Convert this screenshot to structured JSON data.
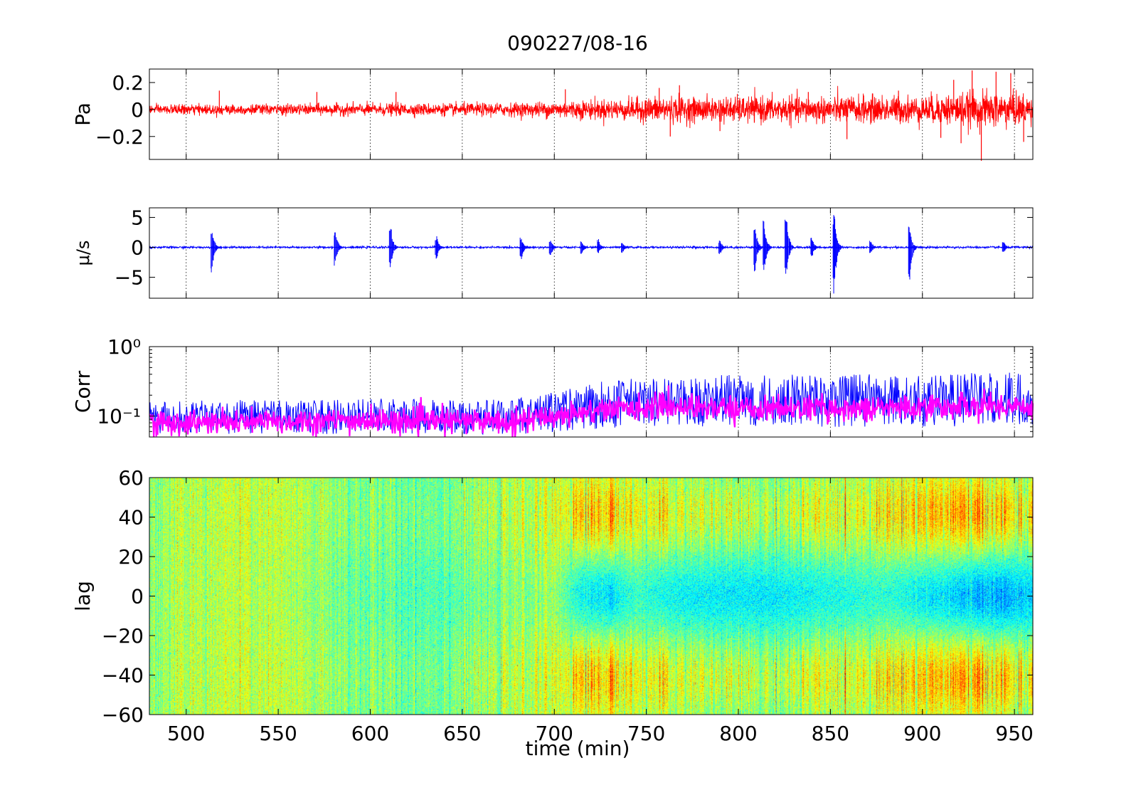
{
  "title": "090227/08-16",
  "xlabel": "time (min)",
  "colors": {
    "pressure": "#ff0000",
    "velocity": "#0000ff",
    "corr_a": "#0000ff",
    "corr_b": "#ff00ff"
  },
  "chart_data": [
    {
      "type": "line",
      "ylabel": "Pa",
      "xlim": [
        480,
        960
      ],
      "ylim": [
        -0.37,
        0.3
      ],
      "xticks": [
        500,
        550,
        600,
        650,
        700,
        750,
        800,
        850,
        900,
        950
      ],
      "yticks": [
        0.2,
        0,
        -0.2
      ],
      "ytick_labels": [
        "0.2",
        "0",
        "−0.2"
      ],
      "grid": "x-dotted",
      "series": [
        {
          "color": "#ff0000",
          "x": [
            480,
            520,
            560,
            600,
            640,
            680,
            700,
            720,
            740,
            760,
            780,
            800,
            820,
            840,
            860,
            880,
            900,
            920,
            940,
            960
          ],
          "amplitude": [
            0.03,
            0.035,
            0.035,
            0.04,
            0.04,
            0.045,
            0.055,
            0.065,
            0.07,
            0.09,
            0.08,
            0.085,
            0.085,
            0.085,
            0.09,
            0.09,
            0.09,
            0.11,
            0.12,
            0.1
          ],
          "spikes": [
            [
              518,
              0.14
            ],
            [
              571,
              0.13
            ],
            [
              614,
              0.13
            ],
            [
              706,
              0.15
            ],
            [
              757,
              0.16
            ],
            [
              763,
              -0.2
            ],
            [
              768,
              0.18
            ],
            [
              790,
              -0.16
            ],
            [
              838,
              0.13
            ],
            [
              859,
              -0.22
            ],
            [
              887,
              0.14
            ],
            [
              910,
              -0.21
            ],
            [
              917,
              0.22
            ],
            [
              921,
              -0.25
            ],
            [
              927,
              0.29
            ],
            [
              932,
              -0.38
            ],
            [
              940,
              0.28
            ],
            [
              948,
              0.27
            ],
            [
              955,
              -0.24
            ]
          ]
        }
      ]
    },
    {
      "type": "line",
      "ylabel": "μ/s",
      "xlim": [
        480,
        960
      ],
      "ylim": [
        -8.5,
        6.6
      ],
      "xticks": [
        500,
        550,
        600,
        650,
        700,
        750,
        800,
        850,
        900,
        950
      ],
      "yticks": [
        5,
        0,
        -5
      ],
      "ytick_labels": [
        "5",
        "0",
        "−5"
      ],
      "grid": "x-dotted",
      "series": [
        {
          "color": "#0000ff",
          "baseline_noise": 0.2,
          "bursts": [
            [
              514,
              3.3,
              -4.3
            ],
            [
              581,
              3.0,
              -3.2
            ],
            [
              611,
              4.0,
              -3.4
            ],
            [
              636,
              1.9,
              -2.0
            ],
            [
              682,
              1.7,
              -2.2
            ],
            [
              698,
              1.4,
              -1.5
            ],
            [
              715,
              1.0,
              -1.3
            ],
            [
              724,
              1.4,
              -1.2
            ],
            [
              737,
              1.0,
              -1.0
            ],
            [
              790,
              1.2,
              -1.3
            ],
            [
              809,
              3.8,
              -4.2
            ],
            [
              814,
              4.6,
              -4.4
            ],
            [
              826,
              6.4,
              -5.5
            ],
            [
              840,
              1.8,
              -1.8
            ],
            [
              852,
              6.3,
              -8.4
            ],
            [
              872,
              1.2,
              -1.0
            ],
            [
              893,
              3.5,
              -5.8
            ],
            [
              944,
              1.0,
              -1.1
            ]
          ]
        }
      ]
    },
    {
      "type": "line",
      "ylabel": "Corr",
      "yscale": "log",
      "xlim": [
        480,
        960
      ],
      "ylim": [
        0.05,
        1.0
      ],
      "xticks": [
        500,
        550,
        600,
        650,
        700,
        750,
        800,
        850,
        900,
        950
      ],
      "ytick_labels": [
        "10⁰",
        "10⁻¹"
      ],
      "grid": "x-dotted",
      "series": [
        {
          "color": "#0000ff",
          "x": [
            480,
            520,
            560,
            600,
            640,
            680,
            700,
            720,
            740,
            760,
            800,
            840,
            880,
            920,
            960
          ],
          "y_low": [
            0.055,
            0.055,
            0.055,
            0.055,
            0.055,
            0.055,
            0.058,
            0.065,
            0.07,
            0.07,
            0.07,
            0.07,
            0.07,
            0.07,
            0.075
          ],
          "y_high": [
            0.16,
            0.17,
            0.17,
            0.18,
            0.17,
            0.18,
            0.22,
            0.3,
            0.35,
            0.35,
            0.4,
            0.4,
            0.4,
            0.42,
            0.45
          ]
        },
        {
          "color": "#ff00ff",
          "x": [
            480,
            520,
            560,
            600,
            640,
            680,
            700,
            720,
            740,
            760,
            800,
            840,
            880,
            920,
            960
          ],
          "y_center": [
            0.08,
            0.08,
            0.085,
            0.085,
            0.085,
            0.085,
            0.1,
            0.12,
            0.13,
            0.14,
            0.13,
            0.13,
            0.13,
            0.14,
            0.14
          ]
        }
      ]
    },
    {
      "type": "heatmap",
      "ylabel": "lag",
      "colormap": "jet",
      "xlim": [
        480,
        960
      ],
      "ylim": [
        -60,
        60
      ],
      "xticks": [
        500,
        550,
        600,
        650,
        700,
        750,
        800,
        850,
        900,
        950
      ],
      "xtick_labels": [
        "500",
        "550",
        "600",
        "650",
        "700",
        "750",
        "800",
        "850",
        "900",
        "950"
      ],
      "yticks": [
        60,
        40,
        20,
        0,
        -20,
        -40,
        -60
      ],
      "ytick_labels": [
        "60",
        "40",
        "20",
        "0",
        "−20",
        "−40",
        "−60"
      ],
      "structure_strength": {
        "x": [
          480,
          700,
          715,
          730,
          745,
          760,
          800,
          840,
          880,
          900,
          920,
          940,
          960
        ],
        "s": [
          0.0,
          0.15,
          0.75,
          0.85,
          0.45,
          0.55,
          0.5,
          0.5,
          0.55,
          0.8,
          0.9,
          1.0,
          0.7
        ]
      }
    }
  ]
}
